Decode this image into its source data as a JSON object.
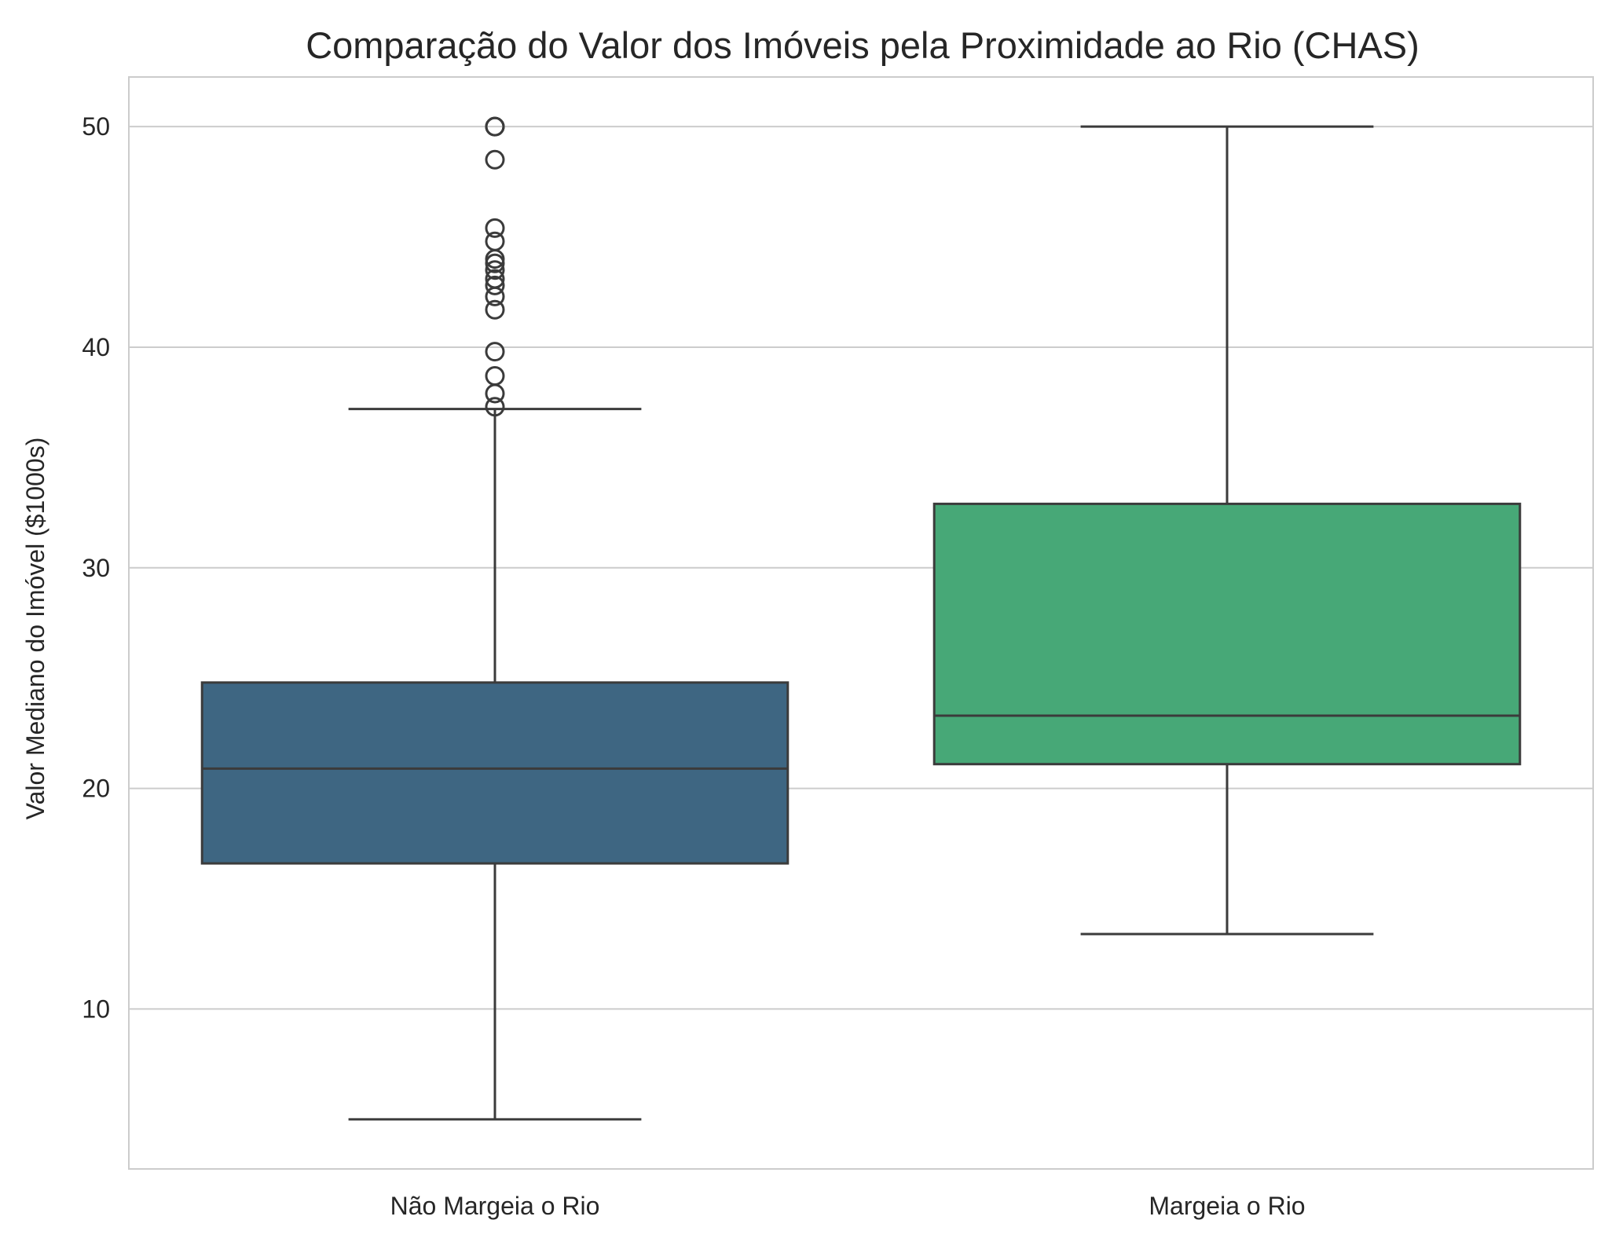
{
  "chart_data": {
    "type": "boxplot",
    "title": "Comparação do Valor dos Imóveis pela Proximidade ao Rio (CHAS)",
    "xlabel": "",
    "ylabel": "Valor Mediano do Imóvel ($1000s)",
    "ylim": [
      2.75,
      52.25
    ],
    "yticks": [
      10,
      20,
      30,
      40,
      50
    ],
    "grid": "horizontal",
    "legend": "none",
    "categories": [
      "Não Margeia o Rio",
      "Margeia o Rio"
    ],
    "boxes": [
      {
        "category": "Não Margeia o Rio",
        "color": "#3e6682",
        "whisker_low": 5.0,
        "q1": 16.6,
        "median": 20.9,
        "q3": 24.8,
        "whisker_high": 37.2,
        "outliers": [
          50.0,
          50.0,
          50.0,
          48.5,
          45.4,
          44.8,
          44.0,
          43.8,
          43.5,
          43.1,
          42.8,
          42.3,
          41.7,
          39.8,
          38.7,
          37.9,
          37.3
        ]
      },
      {
        "category": "Margeia o Rio",
        "color": "#47a877",
        "whisker_low": 13.4,
        "q1": 21.1,
        "median": 23.3,
        "q3": 32.9,
        "whisker_high": 50.0,
        "outliers": []
      }
    ],
    "colors": {
      "edge": "#3b3b3b",
      "grid": "#cccccc",
      "frame": "#cccccc"
    }
  }
}
